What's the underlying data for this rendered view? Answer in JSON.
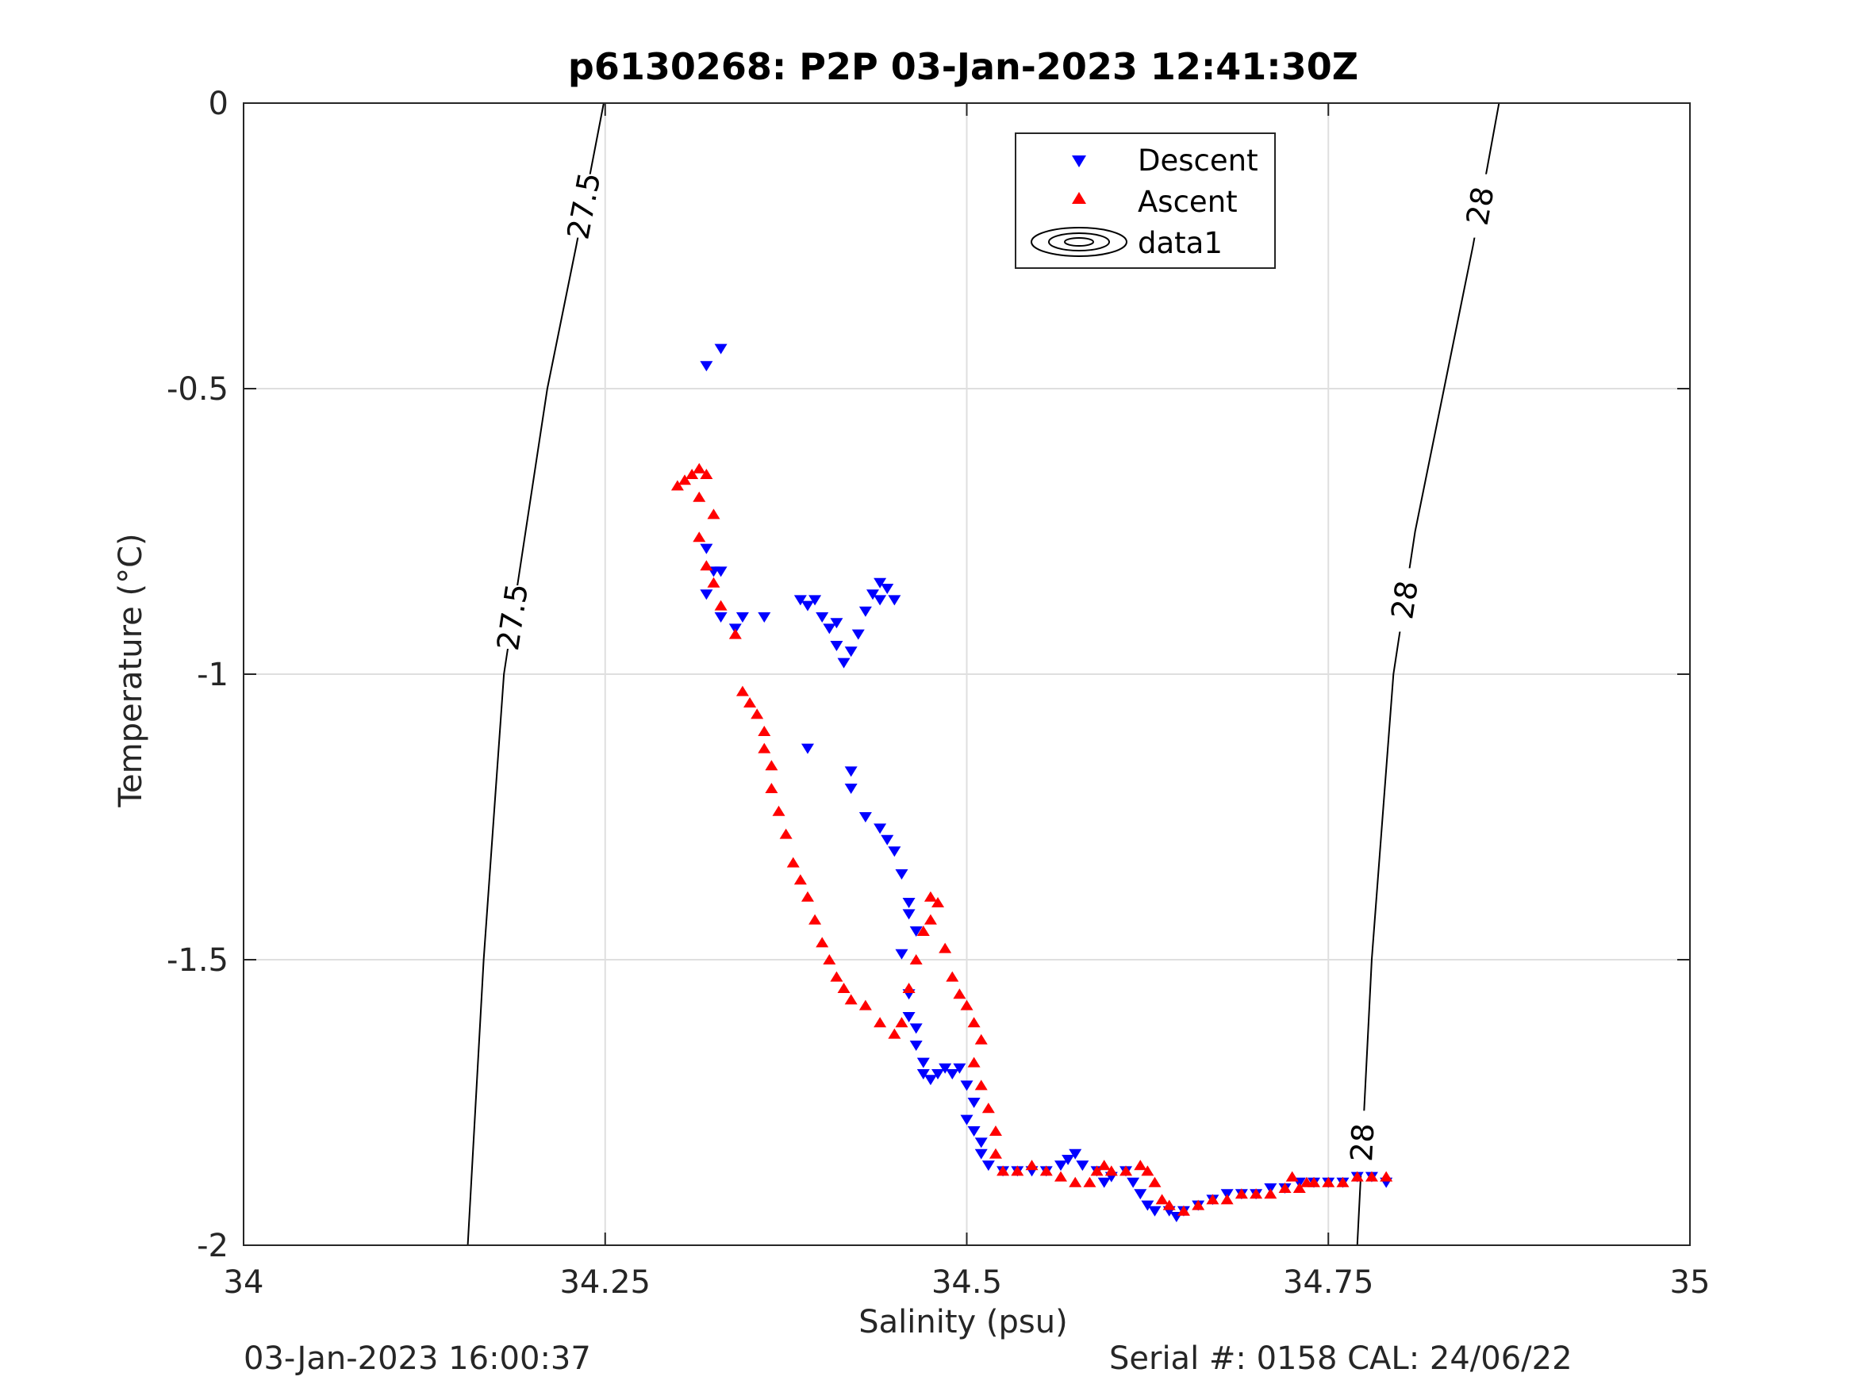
{
  "chart_data": {
    "type": "scatter",
    "title": "p6130268: P2P 03-Jan-2023 12:41:30Z",
    "xlabel": "Salinity (psu)",
    "ylabel": "Temperature (°C)",
    "xlim": [
      34,
      35
    ],
    "ylim": [
      -2,
      0
    ],
    "xticks": [
      "34",
      "34.25",
      "34.5",
      "34.75",
      "35"
    ],
    "yticks": [
      "0",
      "-0.5",
      "-1",
      "-1.5",
      "-2"
    ],
    "grid": true,
    "legend_position": "top-right",
    "legend": [
      "Descent",
      "Ascent",
      "data1"
    ],
    "contours": [
      {
        "level": "27.5",
        "labels": [
          "27.5",
          "27.5"
        ],
        "points": [
          [
            34.249,
            0
          ],
          [
            34.23,
            -0.25
          ],
          [
            34.21,
            -0.5
          ],
          [
            34.195,
            -0.75
          ],
          [
            34.18,
            -1.0
          ],
          [
            34.166,
            -1.5
          ],
          [
            34.155,
            -2.0
          ]
        ]
      },
      {
        "level": "28",
        "labels": [
          "28",
          "28",
          "28"
        ],
        "points": [
          [
            34.868,
            0
          ],
          [
            34.85,
            -0.25
          ],
          [
            34.83,
            -0.5
          ],
          [
            34.81,
            -0.75
          ],
          [
            34.795,
            -1.0
          ],
          [
            34.78,
            -1.5
          ],
          [
            34.77,
            -2.0
          ]
        ]
      }
    ],
    "series": [
      {
        "name": "Descent",
        "marker": "triangle-down",
        "color": "#0000ff",
        "points": [
          [
            34.33,
            -0.43
          ],
          [
            34.32,
            -0.46
          ],
          [
            34.32,
            -0.78
          ],
          [
            34.325,
            -0.82
          ],
          [
            34.33,
            -0.82
          ],
          [
            34.32,
            -0.86
          ],
          [
            34.33,
            -0.9
          ],
          [
            34.34,
            -0.92
          ],
          [
            34.345,
            -0.9
          ],
          [
            34.36,
            -0.9
          ],
          [
            34.385,
            -0.87
          ],
          [
            34.39,
            -0.88
          ],
          [
            34.395,
            -0.87
          ],
          [
            34.4,
            -0.9
          ],
          [
            34.405,
            -0.92
          ],
          [
            34.41,
            -0.91
          ],
          [
            34.41,
            -0.95
          ],
          [
            34.415,
            -0.98
          ],
          [
            34.42,
            -0.96
          ],
          [
            34.425,
            -0.93
          ],
          [
            34.43,
            -0.89
          ],
          [
            34.435,
            -0.86
          ],
          [
            34.44,
            -0.84
          ],
          [
            34.44,
            -0.87
          ],
          [
            34.445,
            -0.85
          ],
          [
            34.45,
            -0.87
          ],
          [
            34.39,
            -1.13
          ],
          [
            34.42,
            -1.17
          ],
          [
            34.42,
            -1.2
          ],
          [
            34.43,
            -1.25
          ],
          [
            34.44,
            -1.27
          ],
          [
            34.445,
            -1.29
          ],
          [
            34.45,
            -1.31
          ],
          [
            34.455,
            -1.35
          ],
          [
            34.46,
            -1.4
          ],
          [
            34.46,
            -1.42
          ],
          [
            34.465,
            -1.45
          ],
          [
            34.455,
            -1.49
          ],
          [
            34.46,
            -1.56
          ],
          [
            34.46,
            -1.6
          ],
          [
            34.465,
            -1.62
          ],
          [
            34.465,
            -1.65
          ],
          [
            34.47,
            -1.68
          ],
          [
            34.47,
            -1.7
          ],
          [
            34.475,
            -1.71
          ],
          [
            34.48,
            -1.7
          ],
          [
            34.485,
            -1.69
          ],
          [
            34.49,
            -1.7
          ],
          [
            34.495,
            -1.69
          ],
          [
            34.5,
            -1.72
          ],
          [
            34.505,
            -1.75
          ],
          [
            34.5,
            -1.78
          ],
          [
            34.505,
            -1.8
          ],
          [
            34.51,
            -1.82
          ],
          [
            34.51,
            -1.84
          ],
          [
            34.515,
            -1.86
          ],
          [
            34.525,
            -1.87
          ],
          [
            34.535,
            -1.87
          ],
          [
            34.545,
            -1.87
          ],
          [
            34.555,
            -1.87
          ],
          [
            34.565,
            -1.86
          ],
          [
            34.57,
            -1.85
          ],
          [
            34.575,
            -1.84
          ],
          [
            34.58,
            -1.86
          ],
          [
            34.59,
            -1.87
          ],
          [
            34.595,
            -1.89
          ],
          [
            34.6,
            -1.88
          ],
          [
            34.61,
            -1.87
          ],
          [
            34.615,
            -1.89
          ],
          [
            34.62,
            -1.91
          ],
          [
            34.625,
            -1.93
          ],
          [
            34.63,
            -1.94
          ],
          [
            34.64,
            -1.94
          ],
          [
            34.645,
            -1.95
          ],
          [
            34.65,
            -1.94
          ],
          [
            34.66,
            -1.93
          ],
          [
            34.67,
            -1.92
          ],
          [
            34.68,
            -1.91
          ],
          [
            34.69,
            -1.91
          ],
          [
            34.7,
            -1.91
          ],
          [
            34.71,
            -1.9
          ],
          [
            34.72,
            -1.9
          ],
          [
            34.73,
            -1.89
          ],
          [
            34.74,
            -1.89
          ],
          [
            34.75,
            -1.89
          ],
          [
            34.76,
            -1.89
          ],
          [
            34.77,
            -1.88
          ],
          [
            34.78,
            -1.88
          ],
          [
            34.79,
            -1.89
          ]
        ]
      },
      {
        "name": "Ascent",
        "marker": "triangle-up",
        "color": "#ff0000",
        "points": [
          [
            34.3,
            -0.67
          ],
          [
            34.305,
            -0.66
          ],
          [
            34.31,
            -0.65
          ],
          [
            34.315,
            -0.64
          ],
          [
            34.32,
            -0.65
          ],
          [
            34.315,
            -0.69
          ],
          [
            34.325,
            -0.72
          ],
          [
            34.315,
            -0.76
          ],
          [
            34.32,
            -0.81
          ],
          [
            34.325,
            -0.84
          ],
          [
            34.33,
            -0.88
          ],
          [
            34.34,
            -0.93
          ],
          [
            34.345,
            -1.03
          ],
          [
            34.35,
            -1.05
          ],
          [
            34.355,
            -1.07
          ],
          [
            34.36,
            -1.1
          ],
          [
            34.36,
            -1.13
          ],
          [
            34.365,
            -1.16
          ],
          [
            34.365,
            -1.2
          ],
          [
            34.37,
            -1.24
          ],
          [
            34.375,
            -1.28
          ],
          [
            34.38,
            -1.33
          ],
          [
            34.385,
            -1.36
          ],
          [
            34.39,
            -1.39
          ],
          [
            34.395,
            -1.43
          ],
          [
            34.4,
            -1.47
          ],
          [
            34.405,
            -1.5
          ],
          [
            34.41,
            -1.53
          ],
          [
            34.415,
            -1.55
          ],
          [
            34.42,
            -1.57
          ],
          [
            34.43,
            -1.58
          ],
          [
            34.44,
            -1.61
          ],
          [
            34.45,
            -1.63
          ],
          [
            34.455,
            -1.61
          ],
          [
            34.46,
            -1.55
          ],
          [
            34.465,
            -1.5
          ],
          [
            34.47,
            -1.45
          ],
          [
            34.475,
            -1.43
          ],
          [
            34.48,
            -1.4
          ],
          [
            34.475,
            -1.39
          ],
          [
            34.485,
            -1.48
          ],
          [
            34.49,
            -1.53
          ],
          [
            34.495,
            -1.56
          ],
          [
            34.5,
            -1.58
          ],
          [
            34.505,
            -1.61
          ],
          [
            34.51,
            -1.64
          ],
          [
            34.505,
            -1.68
          ],
          [
            34.51,
            -1.72
          ],
          [
            34.515,
            -1.76
          ],
          [
            34.52,
            -1.8
          ],
          [
            34.52,
            -1.84
          ],
          [
            34.525,
            -1.87
          ],
          [
            34.535,
            -1.87
          ],
          [
            34.545,
            -1.86
          ],
          [
            34.555,
            -1.87
          ],
          [
            34.565,
            -1.88
          ],
          [
            34.575,
            -1.89
          ],
          [
            34.585,
            -1.89
          ],
          [
            34.59,
            -1.87
          ],
          [
            34.595,
            -1.86
          ],
          [
            34.6,
            -1.87
          ],
          [
            34.61,
            -1.87
          ],
          [
            34.62,
            -1.86
          ],
          [
            34.625,
            -1.87
          ],
          [
            34.63,
            -1.89
          ],
          [
            34.635,
            -1.92
          ],
          [
            34.64,
            -1.93
          ],
          [
            34.65,
            -1.94
          ],
          [
            34.66,
            -1.93
          ],
          [
            34.67,
            -1.92
          ],
          [
            34.68,
            -1.92
          ],
          [
            34.69,
            -1.91
          ],
          [
            34.7,
            -1.91
          ],
          [
            34.71,
            -1.91
          ],
          [
            34.72,
            -1.9
          ],
          [
            34.73,
            -1.9
          ],
          [
            34.74,
            -1.89
          ],
          [
            34.75,
            -1.89
          ],
          [
            34.76,
            -1.89
          ],
          [
            34.77,
            -1.88
          ],
          [
            34.78,
            -1.88
          ],
          [
            34.79,
            -1.88
          ],
          [
            34.725,
            -1.88
          ],
          [
            34.735,
            -1.89
          ]
        ]
      }
    ]
  },
  "footer": {
    "timestamp": "03-Jan-2023 16:00:37",
    "serial": "Serial #: 0158  CAL: 24/06/22"
  }
}
